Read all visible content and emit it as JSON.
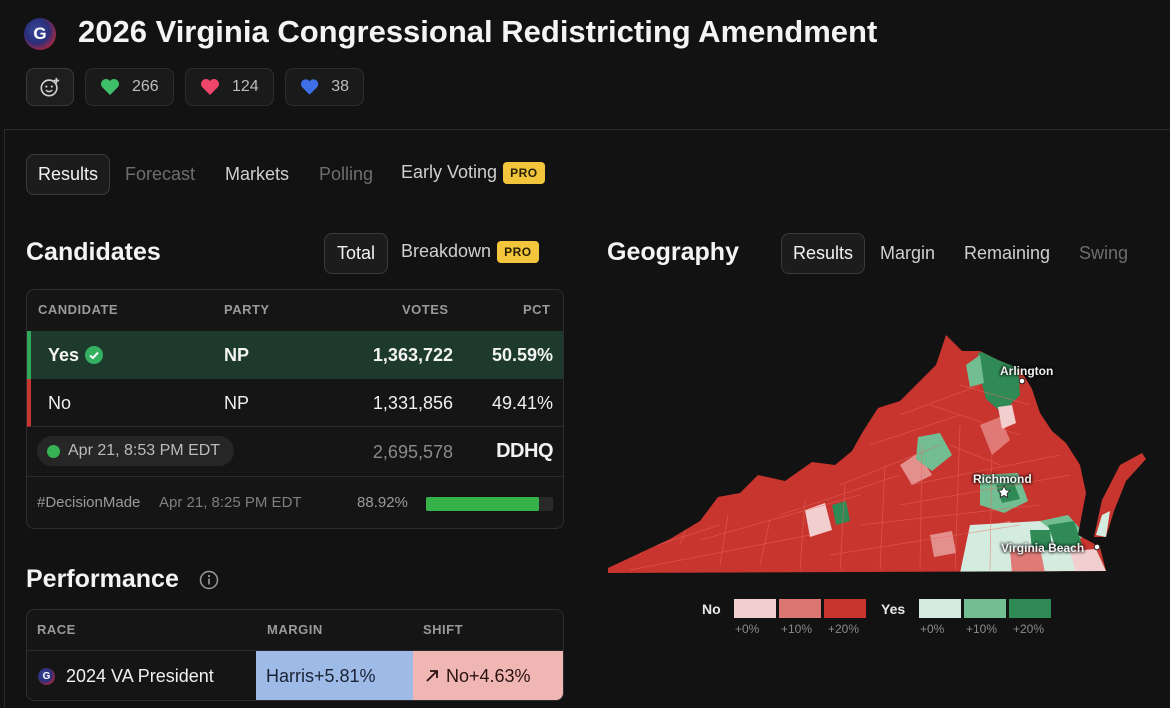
{
  "header": {
    "logo_letter": "G",
    "title": "2026 Virginia Congressional Redistricting Amendment",
    "reactions": [
      {
        "icon": "green-heart-icon",
        "color": "#3fbf6a",
        "count": "266"
      },
      {
        "icon": "red-heart-icon",
        "color": "#f0456a",
        "count": "124"
      },
      {
        "icon": "blue-heart-icon",
        "color": "#3f6fe8",
        "count": "38"
      }
    ]
  },
  "main_tabs": {
    "results": "Results",
    "forecast": "Forecast",
    "markets": "Markets",
    "polling": "Polling",
    "early_voting": "Early Voting",
    "pro": "PRO"
  },
  "candidates": {
    "title": "Candidates",
    "tab_total": "Total",
    "tab_breakdown": "Breakdown",
    "pro": "PRO",
    "columns": {
      "candidate": "CANDIDATE",
      "party": "PARTY",
      "votes": "VOTES",
      "pct": "PCT"
    },
    "rows": [
      {
        "name": "Yes",
        "party": "NP",
        "votes": "1,363,722",
        "pct": "50.59%",
        "winner": true,
        "color": "#2fa85a"
      },
      {
        "name": "No",
        "party": "NP",
        "votes": "1,331,856",
        "pct": "49.41%",
        "winner": false,
        "color": "#c7352f"
      }
    ],
    "updated": "Apr 21, 8:53 PM EDT",
    "total_votes": "2,695,578",
    "source_logo": "DDHQ",
    "decision_tag": "#DecisionMade",
    "decision_time": "Apr 21, 8:25 PM EDT",
    "reporting_pct": "88.92%",
    "reporting_fraction": 0.8892
  },
  "performance": {
    "title": "Performance",
    "columns": {
      "race": "RACE",
      "margin": "MARGIN",
      "shift": "SHIFT"
    },
    "rows": [
      {
        "race": "2024 VA President",
        "margin": "Harris+5.81%",
        "shift": "No+4.63%"
      }
    ]
  },
  "geography": {
    "title": "Geography",
    "tabs": {
      "results": "Results",
      "margin": "Margin",
      "remaining": "Remaining",
      "swing": "Swing"
    },
    "cities": [
      "Arlington",
      "Richmond",
      "Virginia Beach"
    ],
    "legend": {
      "no_label": "No",
      "yes_label": "Yes",
      "no_colors": [
        "#f2cfcf",
        "#dc7672",
        "#c8352f"
      ],
      "yes_colors": [
        "#d4ece0",
        "#72bd92",
        "#2f8a55"
      ],
      "steps": [
        "+0%",
        "+10%",
        "+20%"
      ]
    }
  }
}
